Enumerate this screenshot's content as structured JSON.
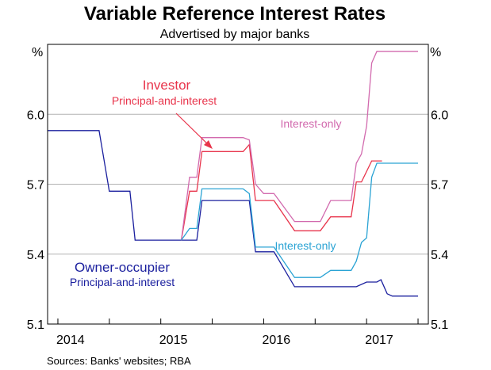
{
  "chart_data": {
    "type": "line",
    "title": "Variable Reference Interest Rates",
    "subtitle": "Advertised by major banks",
    "ylabel_left": "%",
    "ylabel_right": "%",
    "ylim": [
      5.1,
      6.3
    ],
    "yticks": [
      5.1,
      5.4,
      5.7,
      6.0
    ],
    "ytick_labels": [
      "5.1",
      "5.4",
      "5.7",
      "6.0"
    ],
    "xlim": [
      2013.9,
      2017.6
    ],
    "x_year_bounds": [
      2014,
      2015,
      2016,
      2017
    ],
    "xtick_labels": [
      {
        "label": "2014",
        "x": 2014.5
      },
      {
        "label": "2015",
        "x": 2015.5
      },
      {
        "label": "2016",
        "x": 2016.5
      },
      {
        "label": "2017",
        "x": 2017.5
      }
    ],
    "grid": true,
    "source": "Sources:  Banks' websites; RBA",
    "series": [
      {
        "name": "Owner-occupier principal-and-interest",
        "color": "#1a1f9e",
        "points": [
          [
            2013.9,
            5.93
          ],
          [
            2014.4,
            5.93
          ],
          [
            2014.5,
            5.67
          ],
          [
            2014.7,
            5.67
          ],
          [
            2014.75,
            5.46
          ],
          [
            2015.2,
            5.46
          ],
          [
            2015.35,
            5.46
          ],
          [
            2015.4,
            5.63
          ],
          [
            2015.86,
            5.63
          ],
          [
            2015.92,
            5.41
          ],
          [
            2016.1,
            5.41
          ],
          [
            2016.3,
            5.26
          ],
          [
            2016.9,
            5.26
          ],
          [
            2017.0,
            5.28
          ],
          [
            2017.1,
            5.28
          ],
          [
            2017.14,
            5.29
          ],
          [
            2017.2,
            5.23
          ],
          [
            2017.25,
            5.22
          ],
          [
            2017.5,
            5.22
          ]
        ]
      },
      {
        "name": "Investor principal-and-interest",
        "color": "#e8344b",
        "points": [
          [
            2015.2,
            5.46
          ],
          [
            2015.28,
            5.67
          ],
          [
            2015.35,
            5.67
          ],
          [
            2015.4,
            5.84
          ],
          [
            2015.8,
            5.84
          ],
          [
            2015.86,
            5.87
          ],
          [
            2015.92,
            5.63
          ],
          [
            2016.1,
            5.63
          ],
          [
            2016.3,
            5.5
          ],
          [
            2016.55,
            5.5
          ],
          [
            2016.65,
            5.56
          ],
          [
            2016.85,
            5.56
          ],
          [
            2016.9,
            5.71
          ],
          [
            2016.95,
            5.71
          ],
          [
            2017.05,
            5.8
          ],
          [
            2017.15,
            5.8
          ]
        ]
      },
      {
        "name": "Investor interest-only",
        "color": "#d26aae",
        "points": [
          [
            2015.2,
            5.46
          ],
          [
            2015.28,
            5.73
          ],
          [
            2015.35,
            5.73
          ],
          [
            2015.4,
            5.9
          ],
          [
            2015.8,
            5.9
          ],
          [
            2015.86,
            5.89
          ],
          [
            2015.92,
            5.7
          ],
          [
            2016.0,
            5.66
          ],
          [
            2016.1,
            5.66
          ],
          [
            2016.3,
            5.54
          ],
          [
            2016.55,
            5.54
          ],
          [
            2016.65,
            5.63
          ],
          [
            2016.85,
            5.63
          ],
          [
            2016.9,
            5.79
          ],
          [
            2016.95,
            5.83
          ],
          [
            2017.0,
            5.95
          ],
          [
            2017.05,
            6.22
          ],
          [
            2017.1,
            6.27
          ],
          [
            2017.5,
            6.27
          ]
        ]
      },
      {
        "name": "Owner-occupier interest-only",
        "color": "#2aa3d4",
        "points": [
          [
            2015.2,
            5.46
          ],
          [
            2015.28,
            5.51
          ],
          [
            2015.35,
            5.51
          ],
          [
            2015.4,
            5.68
          ],
          [
            2015.8,
            5.68
          ],
          [
            2015.86,
            5.66
          ],
          [
            2015.92,
            5.43
          ],
          [
            2016.1,
            5.43
          ],
          [
            2016.3,
            5.3
          ],
          [
            2016.55,
            5.3
          ],
          [
            2016.65,
            5.33
          ],
          [
            2016.85,
            5.33
          ],
          [
            2016.9,
            5.37
          ],
          [
            2016.95,
            5.45
          ],
          [
            2017.0,
            5.47
          ],
          [
            2017.05,
            5.73
          ],
          [
            2017.1,
            5.79
          ],
          [
            2017.5,
            5.79
          ]
        ]
      }
    ],
    "annotations": {
      "investor_title": "Investor",
      "investor_sub": "Principal-and-interest",
      "interest_only_top": "Interest-only",
      "interest_only_bottom": "Interest-only",
      "owner_title": "Owner-occupier",
      "owner_sub": "Principal-and-interest"
    },
    "colors": {
      "owner": "#1a1f9e",
      "investor": "#e8344b",
      "io_investor": "#d26aae",
      "io_owner": "#2aa3d4",
      "grid": "#b3b3b3",
      "axis": "#000000"
    }
  }
}
